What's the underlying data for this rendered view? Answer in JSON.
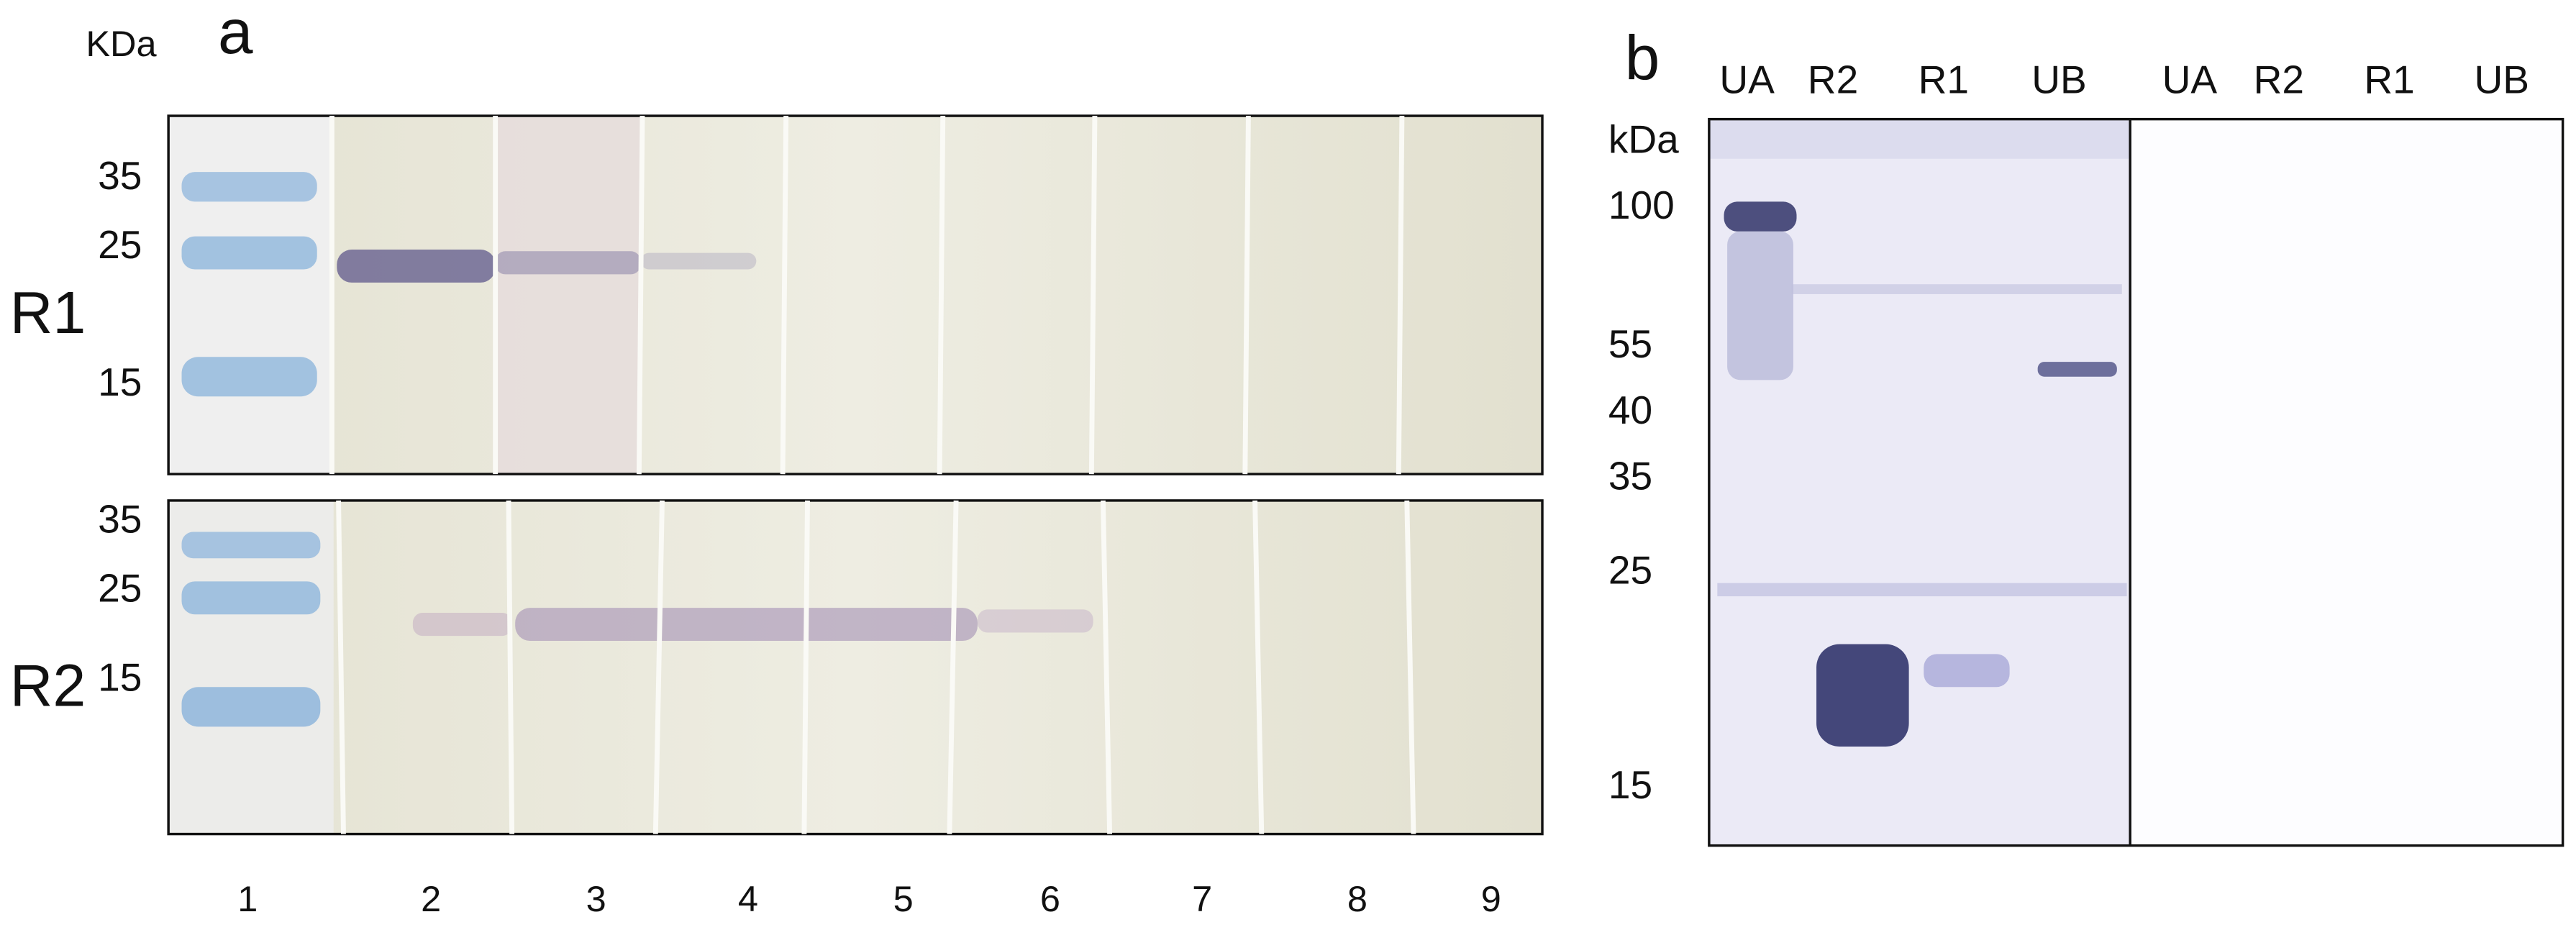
{
  "panel_a": {
    "label": "a",
    "unit_label": "KDa",
    "lanes": [
      "1",
      "2",
      "3",
      "4",
      "5",
      "6",
      "7",
      "8",
      "9"
    ],
    "blots": [
      {
        "label": "R1",
        "markers": [
          "35",
          "25",
          "15"
        ]
      },
      {
        "label": "R2",
        "markers": [
          "35",
          "25",
          "15"
        ]
      }
    ]
  },
  "panel_b": {
    "label": "b",
    "unit_label": "kDa",
    "lanes": [
      "UA",
      "R2",
      "R1",
      "UB",
      "UA",
      "R2",
      "R1",
      "UB"
    ],
    "markers": [
      "100",
      "55",
      "40",
      "35",
      "25",
      "15"
    ]
  }
}
